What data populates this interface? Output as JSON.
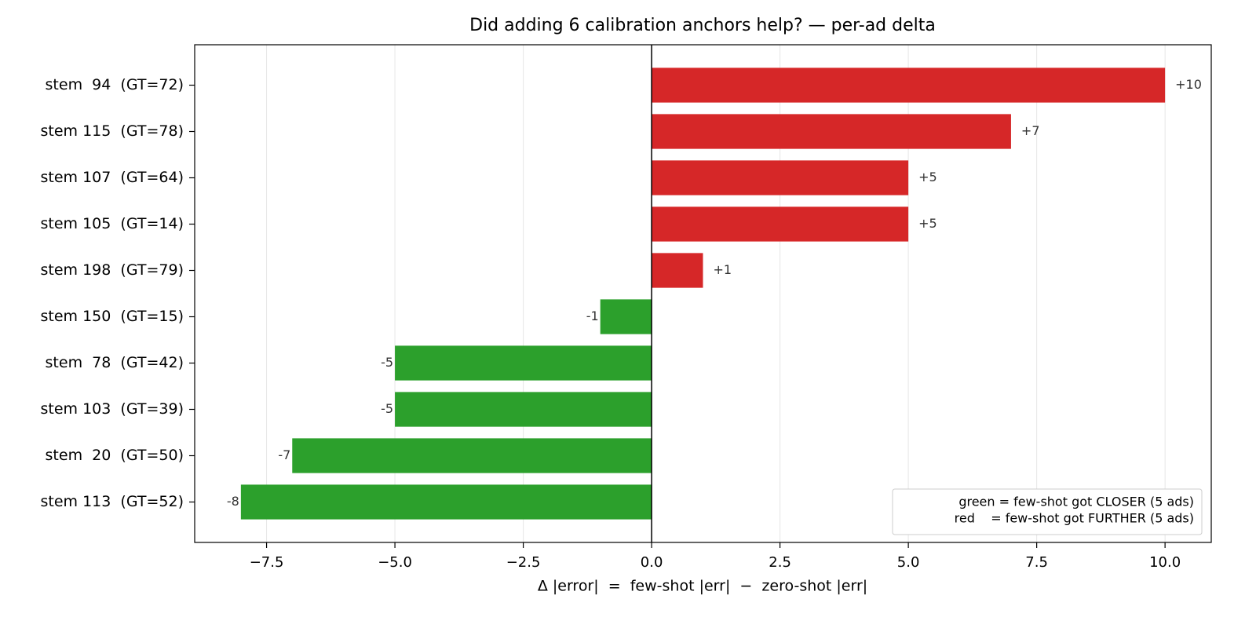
{
  "chart_data": {
    "type": "barh",
    "title": "Did adding 6 calibration anchors help? — per-ad delta",
    "xlabel": "Δ |error|  =  few-shot |err|  −  zero-shot |err|",
    "categories": [
      "stem  94  (GT=72)",
      "stem 115  (GT=78)",
      "stem 107  (GT=64)",
      "stem 105  (GT=14)",
      "stem 198  (GT=79)",
      "stem 150  (GT=15)",
      "stem  78  (GT=42)",
      "stem 103  (GT=39)",
      "stem  20  (GT=50)",
      "stem 113  (GT=52)"
    ],
    "values": [
      10,
      7,
      5,
      5,
      1,
      -1,
      -5,
      -5,
      -7,
      -8
    ],
    "value_labels": [
      "+10",
      "+7",
      "+5",
      "+5",
      "+1",
      "-1",
      "-5",
      "-5",
      "-7",
      "-8"
    ],
    "colors": [
      "#d62728",
      "#d62728",
      "#d62728",
      "#d62728",
      "#d62728",
      "#2ca02c",
      "#2ca02c",
      "#2ca02c",
      "#2ca02c",
      "#2ca02c"
    ],
    "xlim": [
      -8.9,
      10.9
    ],
    "xticks": [
      {
        "value": -7.5,
        "label": "−7.5"
      },
      {
        "value": -5,
        "label": "−5.0"
      },
      {
        "value": -2.5,
        "label": "−2.5"
      },
      {
        "value": 0,
        "label": "0.0"
      },
      2.5,
      {
        "value": 5,
        "label": "5.0"
      },
      7.5,
      {
        "value": 10,
        "label": "10.0"
      }
    ],
    "grid": true,
    "legend_loc": "lower right",
    "legend_lines": [
      "green = few-shot got CLOSER (5 ads)",
      "red    = few-shot got FURTHER (5 ads)"
    ]
  }
}
